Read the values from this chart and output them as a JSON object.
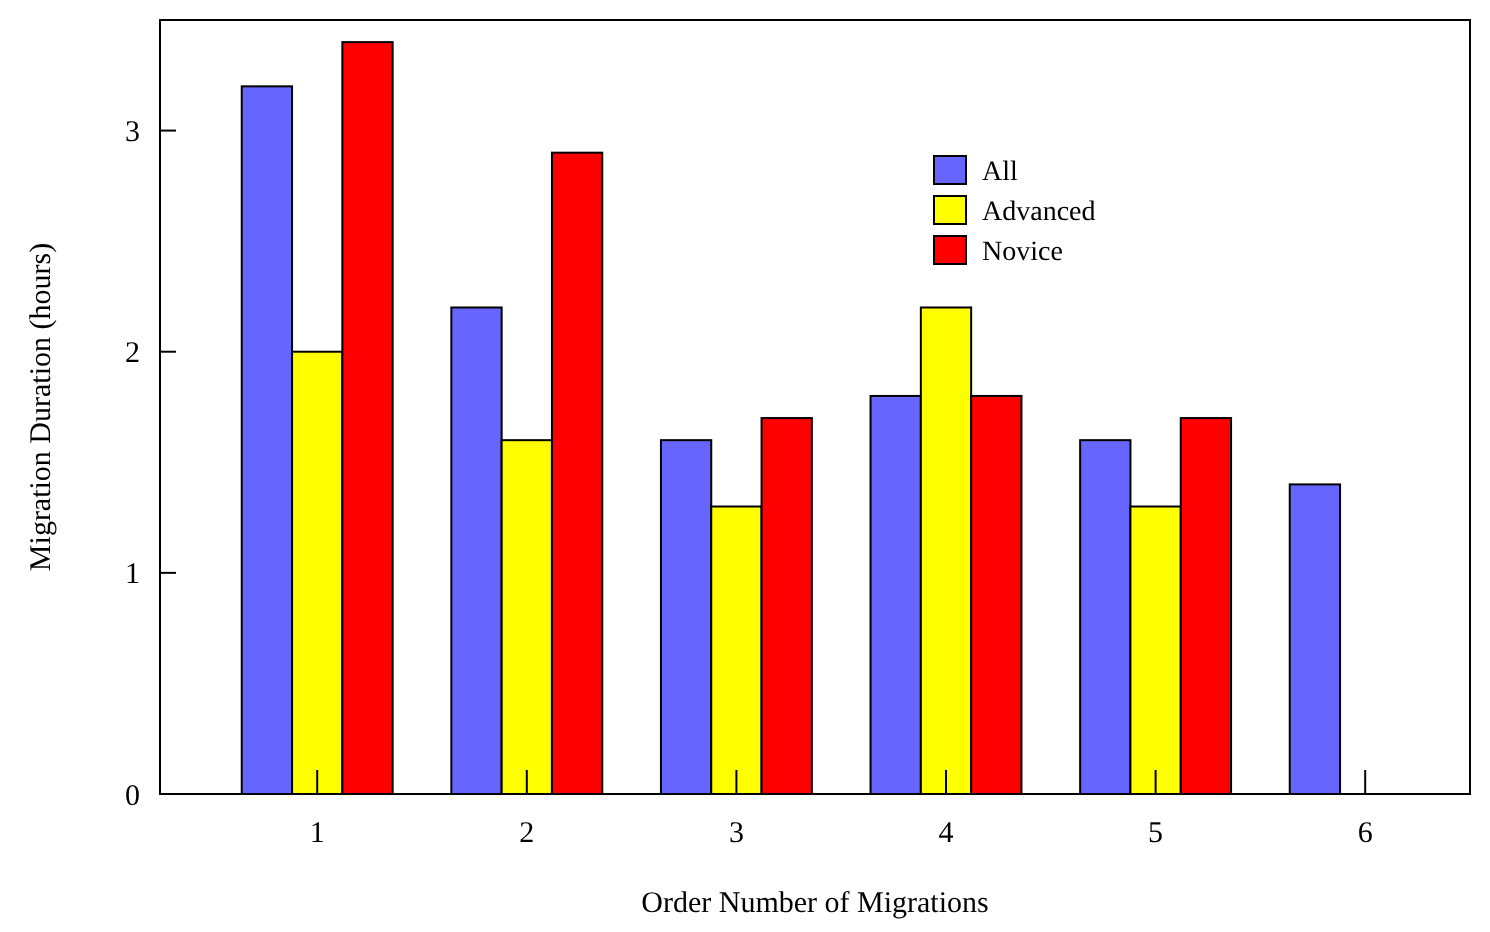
{
  "chart_data": {
    "type": "bar",
    "xlabel": "Order Number of Migrations",
    "ylabel": "Migration Duration (hours)",
    "categories": [
      "1",
      "2",
      "3",
      "4",
      "5",
      "6"
    ],
    "series": [
      {
        "name": "All",
        "color": "#6666ff",
        "values": [
          3.2,
          2.2,
          1.6,
          1.8,
          1.6,
          1.4
        ]
      },
      {
        "name": "Advanced",
        "color": "#ffff00",
        "values": [
          2.0,
          1.6,
          1.3,
          2.2,
          1.3,
          null
        ]
      },
      {
        "name": "Novice",
        "color": "#ff0000",
        "values": [
          3.4,
          2.9,
          1.7,
          1.8,
          1.7,
          null
        ]
      }
    ],
    "ylim": [
      0,
      3.5
    ],
    "yticks": [
      0,
      1,
      2,
      3
    ],
    "legend": "top right",
    "grid": false
  }
}
